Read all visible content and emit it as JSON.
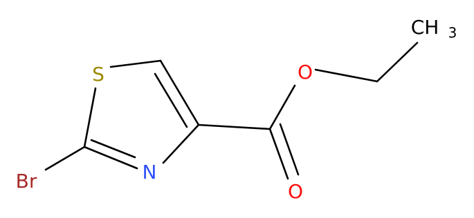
{
  "atoms": [
    {
      "label": "S"
    },
    {
      "label": "N"
    },
    {
      "label": "Br"
    },
    {
      "label": "O"
    },
    {
      "label": "O"
    },
    {
      "label": "CH",
      "subscript": "3"
    }
  ]
}
